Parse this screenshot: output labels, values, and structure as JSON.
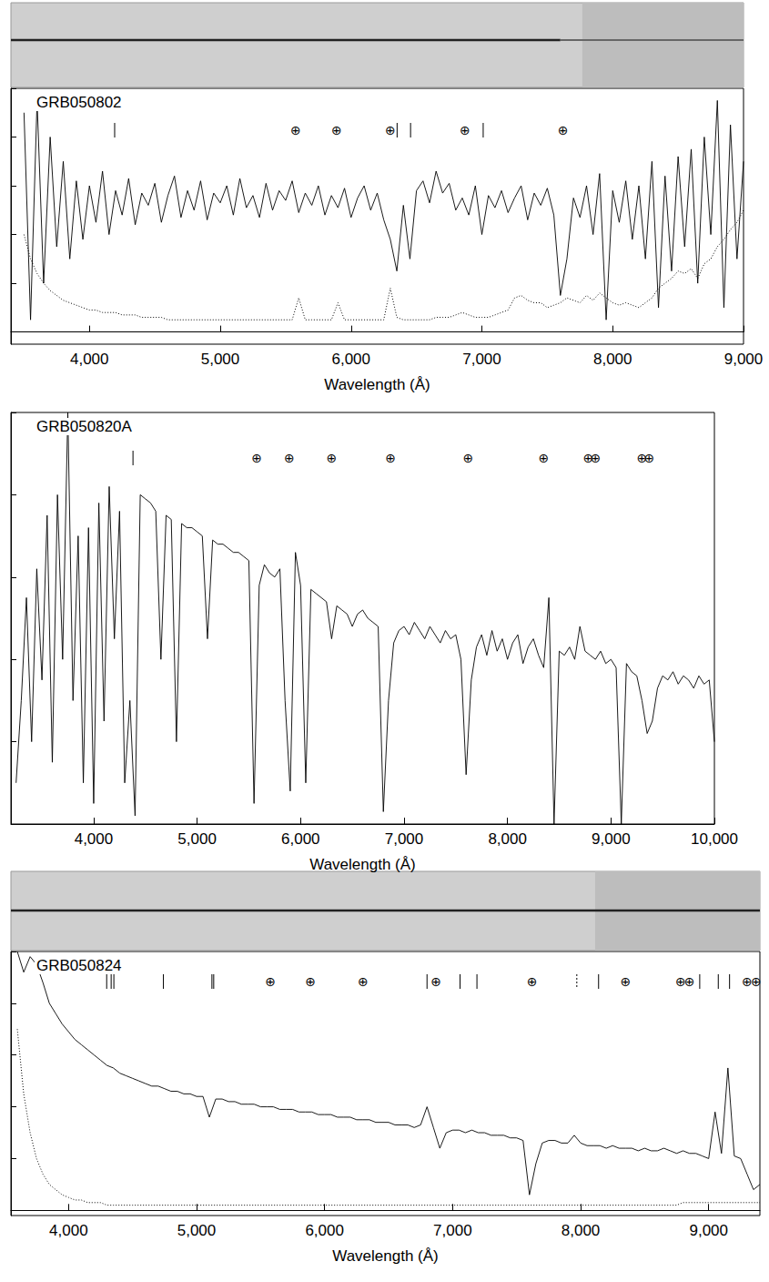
{
  "chart_data": [
    {
      "type": "line",
      "title": "GRB050802",
      "x_label": "Wavelength (Å)",
      "xlim": [
        3400,
        9000
      ],
      "xticks": [
        4000,
        5000,
        6000,
        7000,
        8000,
        9000
      ],
      "ylim": [
        -5,
        100
      ],
      "yticks": [
        0,
        20,
        40,
        60,
        80,
        100
      ],
      "tick_labels": "x",
      "grid": false,
      "x": [
        3500,
        3550,
        3600,
        3650,
        3700,
        3750,
        3800,
        3850,
        3900,
        3950,
        4000,
        4050,
        4100,
        4150,
        4200,
        4250,
        4300,
        4350,
        4400,
        4450,
        4500,
        4550,
        4600,
        4650,
        4700,
        4750,
        4800,
        4850,
        4900,
        4950,
        5000,
        5050,
        5100,
        5150,
        5200,
        5250,
        5300,
        5350,
        5400,
        5450,
        5500,
        5550,
        5600,
        5650,
        5700,
        5750,
        5800,
        5850,
        5900,
        5950,
        6000,
        6050,
        6100,
        6150,
        6200,
        6250,
        6300,
        6350,
        6400,
        6450,
        6500,
        6550,
        6600,
        6650,
        6700,
        6750,
        6800,
        6850,
        6900,
        6950,
        7000,
        7050,
        7100,
        7150,
        7200,
        7250,
        7300,
        7350,
        7400,
        7450,
        7500,
        7550,
        7600,
        7650,
        7700,
        7750,
        7800,
        7850,
        7900,
        7950,
        8000,
        8050,
        8100,
        8150,
        8200,
        8250,
        8300,
        8350,
        8400,
        8450,
        8500,
        8550,
        8600,
        8650,
        8700,
        8750,
        8800,
        8850,
        8900,
        8950,
        9000
      ],
      "series": [
        {
          "color": "#000000",
          "line_style": "solid",
          "values": [
            90,
            5,
            95,
            20,
            80,
            35,
            70,
            30,
            62,
            38,
            60,
            45,
            66,
            40,
            58,
            48,
            63,
            44,
            57,
            52,
            61,
            45,
            56,
            64,
            47,
            58,
            50,
            62,
            46,
            57,
            53,
            60,
            48,
            63,
            51,
            56,
            47,
            61,
            50,
            58,
            54,
            62,
            49,
            57,
            52,
            60,
            48,
            56,
            51,
            59,
            47,
            55,
            60,
            50,
            57,
            46,
            38,
            25,
            52,
            30,
            58,
            62,
            53,
            66,
            57,
            61,
            50,
            55,
            48,
            60,
            40,
            56,
            51,
            58,
            49,
            55,
            60,
            46,
            57,
            52,
            59,
            48,
            15,
            30,
            55,
            47,
            60,
            40,
            65,
            5,
            58,
            45,
            62,
            38,
            60,
            30,
            70,
            10,
            64,
            25,
            72,
            35,
            75,
            20,
            80,
            40,
            95,
            10,
            85,
            30,
            70
          ]
        },
        {
          "color": "#000000",
          "line_style": "dotted",
          "values": [
            40,
            30,
            24,
            20,
            17,
            15,
            13,
            12,
            11,
            10,
            9,
            9,
            8,
            8,
            8,
            7,
            7,
            7,
            6,
            6,
            6,
            6,
            5,
            5,
            5,
            5,
            5,
            5,
            5,
            5,
            5,
            5,
            5,
            5,
            5,
            5,
            5,
            5,
            5,
            5,
            5,
            5,
            14,
            5,
            5,
            5,
            5,
            5,
            12,
            5,
            5,
            5,
            5,
            5,
            5,
            5,
            18,
            6,
            5,
            5,
            5,
            5,
            5,
            6,
            6,
            6,
            7,
            8,
            7,
            6,
            6,
            6,
            7,
            8,
            9,
            14,
            15,
            13,
            12,
            12,
            10,
            11,
            12,
            14,
            13,
            12,
            15,
            13,
            16,
            14,
            12,
            11,
            12,
            11,
            10,
            12,
            14,
            18,
            20,
            22,
            25,
            24,
            26,
            22,
            28,
            30,
            35,
            38,
            42,
            45,
            50
          ]
        }
      ],
      "zero_line": {
        "value": 0,
        "line_style": "dashed"
      },
      "line_markers": [
        4193,
        6352,
        6455,
        7010
      ],
      "dotted_markers": [],
      "telluric_markers": [
        5577,
        5890,
        6300,
        6870,
        7620
      ],
      "telluric_symbol": "⊕"
    },
    {
      "type": "line",
      "title": "GRB050820A",
      "x_label": "Wavelength (Å)",
      "xlim": [
        3200,
        10000
      ],
      "xticks": [
        4000,
        5000,
        6000,
        7000,
        8000,
        9000,
        10000
      ],
      "ylim": [
        0,
        100
      ],
      "yticks": [
        0,
        20,
        40,
        60,
        80,
        100
      ],
      "tick_labels": "x",
      "grid": false,
      "x": [
        3250,
        3300,
        3350,
        3400,
        3450,
        3500,
        3550,
        3600,
        3650,
        3700,
        3750,
        3800,
        3850,
        3900,
        3950,
        4000,
        4050,
        4100,
        4150,
        4200,
        4250,
        4300,
        4350,
        4400,
        4450,
        4500,
        4550,
        4600,
        4650,
        4700,
        4750,
        4800,
        4850,
        4900,
        4950,
        5000,
        5050,
        5100,
        5150,
        5200,
        5250,
        5300,
        5350,
        5400,
        5450,
        5500,
        5550,
        5600,
        5650,
        5700,
        5750,
        5800,
        5850,
        5900,
        5950,
        6000,
        6050,
        6100,
        6150,
        6200,
        6250,
        6300,
        6350,
        6400,
        6450,
        6500,
        6550,
        6600,
        6650,
        6700,
        6750,
        6800,
        6850,
        6900,
        6950,
        7000,
        7050,
        7100,
        7150,
        7200,
        7250,
        7300,
        7350,
        7400,
        7450,
        7500,
        7550,
        7600,
        7650,
        7700,
        7750,
        7800,
        7850,
        7900,
        7950,
        8000,
        8050,
        8100,
        8150,
        8200,
        8250,
        8300,
        8350,
        8400,
        8450,
        8500,
        8550,
        8600,
        8650,
        8700,
        8750,
        8800,
        8850,
        8900,
        8950,
        9000,
        9050,
        9100,
        9150,
        9200,
        9250,
        9300,
        9350,
        9400,
        9450,
        9500,
        9550,
        9600,
        9650,
        9700,
        9750,
        9800,
        9850,
        9900,
        9950,
        10000
      ],
      "series": [
        {
          "color": "#000000",
          "line_style": "solid",
          "values": [
            10,
            30,
            55,
            20,
            62,
            35,
            75,
            15,
            80,
            40,
            100,
            30,
            70,
            10,
            72,
            5,
            78,
            25,
            82,
            45,
            76,
            10,
            30,
            2,
            80,
            79,
            78,
            76,
            40,
            75,
            74,
            20,
            73,
            72,
            72,
            71,
            70,
            45,
            69,
            68,
            68,
            67,
            66,
            66,
            65,
            64,
            5,
            58,
            63,
            61,
            60,
            62,
            30,
            8,
            66,
            58,
            10,
            57,
            56,
            55,
            54,
            45,
            53,
            52,
            51,
            48,
            51,
            52,
            50,
            49,
            48,
            3,
            30,
            44,
            47,
            48,
            46,
            49,
            47,
            45,
            48,
            46,
            44,
            47,
            45,
            46,
            40,
            12,
            35,
            43,
            46,
            41,
            47,
            42,
            45,
            40,
            44,
            46,
            39,
            43,
            45,
            41,
            38,
            55,
            0,
            42,
            41,
            43,
            40,
            48,
            42,
            41,
            40,
            42,
            39,
            40,
            38,
            0,
            39,
            37,
            36,
            30,
            22,
            25,
            33,
            36,
            35,
            37,
            34,
            36,
            35,
            33,
            36,
            34,
            35,
            20
          ]
        }
      ],
      "line_markers": [
        4380
      ],
      "dotted_markers": [],
      "telluric_markers": [
        5577,
        5890,
        6300,
        6870,
        7620,
        8350,
        8780,
        8850,
        9300,
        9370
      ],
      "telluric_symbol": "⊕"
    },
    {
      "type": "line",
      "title": "GRB050824",
      "x_label": "Wavelength (Å)",
      "xlim": [
        3550,
        9400
      ],
      "xticks": [
        4000,
        5000,
        6000,
        7000,
        8000,
        9000
      ],
      "ylim": [
        -2,
        100
      ],
      "yticks": [
        0,
        20,
        40,
        60,
        80,
        100
      ],
      "tick_labels": "x",
      "grid": false,
      "x": [
        3600,
        3650,
        3700,
        3750,
        3800,
        3850,
        3900,
        3950,
        4000,
        4050,
        4100,
        4150,
        4200,
        4250,
        4300,
        4350,
        4400,
        4450,
        4500,
        4550,
        4600,
        4650,
        4700,
        4750,
        4800,
        4850,
        4900,
        4950,
        5000,
        5050,
        5100,
        5150,
        5200,
        5250,
        5300,
        5350,
        5400,
        5450,
        5500,
        5550,
        5600,
        5650,
        5700,
        5750,
        5800,
        5850,
        5900,
        5950,
        6000,
        6050,
        6100,
        6150,
        6200,
        6250,
        6300,
        6350,
        6400,
        6450,
        6500,
        6550,
        6600,
        6650,
        6700,
        6750,
        6800,
        6850,
        6900,
        6950,
        7000,
        7050,
        7100,
        7150,
        7200,
        7250,
        7300,
        7350,
        7400,
        7450,
        7500,
        7550,
        7600,
        7650,
        7700,
        7750,
        7800,
        7850,
        7900,
        7950,
        8000,
        8050,
        8100,
        8150,
        8200,
        8250,
        8300,
        8350,
        8400,
        8450,
        8500,
        8550,
        8600,
        8650,
        8700,
        8750,
        8800,
        8850,
        8900,
        8950,
        9000,
        9050,
        9100,
        9150,
        9200,
        9250,
        9300,
        9350,
        9400
      ],
      "series": [
        {
          "color": "#000000",
          "line_style": "solid",
          "values": [
            100,
            92,
            98,
            95,
            88,
            80,
            76,
            72,
            69,
            66,
            64,
            62,
            60,
            58,
            56,
            55,
            53,
            52,
            51,
            50,
            49,
            48,
            48,
            47,
            46,
            46,
            45,
            45,
            44,
            44,
            36,
            43,
            43,
            42,
            42,
            41,
            41,
            41,
            40,
            40,
            40,
            39,
            39,
            39,
            38,
            38,
            38,
            37,
            37,
            37,
            36,
            36,
            36,
            35,
            35,
            35,
            34,
            34,
            34,
            33,
            33,
            33,
            32,
            33,
            40,
            32,
            24,
            30,
            31,
            31,
            30,
            31,
            30,
            30,
            29,
            29,
            29,
            28,
            28,
            27,
            6,
            18,
            26,
            27,
            27,
            26,
            26,
            29,
            26,
            25,
            25,
            25,
            24,
            25,
            24,
            24,
            24,
            23,
            24,
            23,
            23,
            24,
            23,
            22,
            23,
            22,
            22,
            21,
            20,
            38,
            22,
            55,
            21,
            20,
            14,
            8,
            10
          ]
        },
        {
          "color": "#000000",
          "line_style": "dotted",
          "values": [
            70,
            45,
            30,
            20,
            14,
            10,
            8,
            6,
            5,
            4,
            4,
            3,
            3,
            3,
            2,
            2,
            2,
            2,
            2,
            2,
            2,
            2,
            2,
            2,
            2,
            2,
            2,
            2,
            2,
            2,
            2,
            2,
            2,
            2,
            2,
            2,
            2,
            2,
            2,
            2,
            2,
            2,
            2,
            2,
            2,
            2,
            2,
            2,
            2,
            2,
            2,
            2,
            2,
            2,
            2,
            2,
            2,
            2,
            2,
            2,
            2,
            2,
            2,
            2,
            2,
            2,
            2,
            2,
            2,
            2,
            2,
            2,
            2,
            2,
            2,
            2,
            2,
            2,
            2,
            2,
            2,
            2,
            2,
            2,
            2,
            2,
            2,
            2,
            2,
            2,
            2,
            2,
            2,
            2,
            2,
            2,
            2,
            2,
            2,
            2,
            2,
            2,
            2,
            2,
            3,
            3,
            3,
            3,
            3,
            3,
            3,
            3,
            3,
            3,
            3,
            3,
            3
          ]
        }
      ],
      "zero_line": {
        "value": 0,
        "line_style": "dashed"
      },
      "line_markers": [
        4298,
        4333,
        4354,
        4741,
        5120,
        5134,
        6800,
        7058,
        7190,
        8140,
        8930,
        9075,
        9163
      ],
      "dotted_markers": [
        7970
      ],
      "telluric_markers": [
        5577,
        5890,
        6300,
        6870,
        7620,
        8350,
        8780,
        8850,
        9300,
        9370
      ],
      "telluric_symbol": "⊕"
    }
  ]
}
